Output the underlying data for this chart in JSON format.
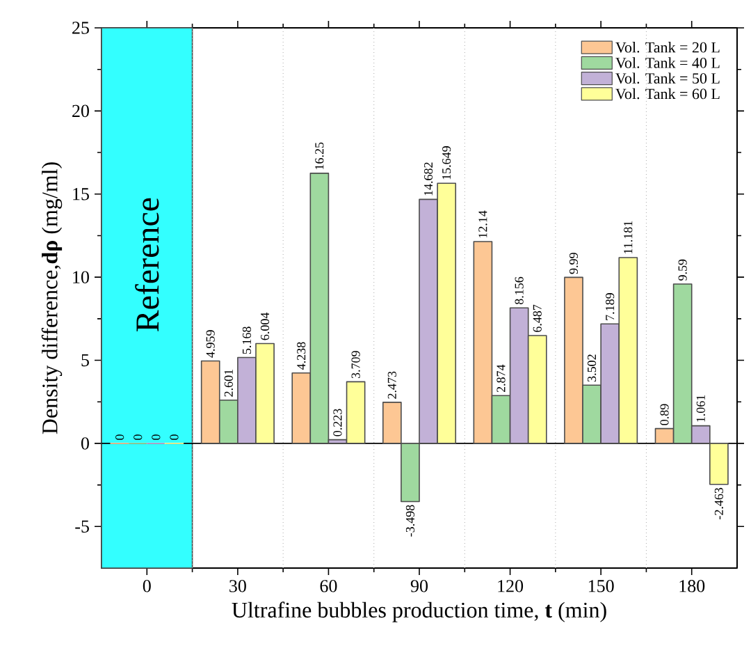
{
  "chart_data": {
    "type": "bar",
    "xlabel": "Ultrafine bubbles production time, **t** (min)",
    "ylabel": "Density difference,**dρ** (mg/ml)",
    "x": [
      0,
      30,
      60,
      90,
      120,
      150,
      180
    ],
    "series": [
      {
        "name": "Vol. Tank = 20 L",
        "color": "#fdc794",
        "values": [
          0,
          4.959,
          4.238,
          2.473,
          12.14,
          9.99,
          0.89
        ]
      },
      {
        "name": "Vol. Tank = 40 L",
        "color": "#9fd99f",
        "values": [
          0,
          2.601,
          16.25,
          -3.498,
          2.874,
          3.502,
          9.59
        ]
      },
      {
        "name": "Vol. Tank = 50 L",
        "color": "#c2b1d7",
        "values": [
          0,
          5.168,
          0.223,
          14.682,
          8.156,
          7.189,
          1.061
        ]
      },
      {
        "name": "Vol. Tank = 60 L",
        "color": "#ffff99",
        "values": [
          0,
          6.004,
          3.709,
          15.649,
          6.487,
          11.181,
          -2.463
        ]
      }
    ],
    "xlim": [
      -15,
      195
    ],
    "xticks": [
      0,
      30,
      60,
      90,
      120,
      150,
      180
    ],
    "ylim": [
      -7.5,
      25
    ],
    "yticks": [
      -5,
      0,
      5,
      10,
      15,
      20,
      25
    ],
    "bands": [
      {
        "axis": "x",
        "from": -15,
        "to": 15,
        "label": "Reference",
        "color": "#33ffff"
      }
    ],
    "ref_lines": [
      {
        "axis": "y",
        "value": 0,
        "color": "#000000",
        "line_style": "solid"
      },
      {
        "axis": "x",
        "value": 15,
        "color": "#aaaaaa",
        "line_style": "dotted"
      },
      {
        "axis": "x",
        "value": 45,
        "color": "#aaaaaa",
        "line_style": "dotted"
      },
      {
        "axis": "x",
        "value": 75,
        "color": "#aaaaaa",
        "line_style": "dotted"
      },
      {
        "axis": "x",
        "value": 105,
        "color": "#aaaaaa",
        "line_style": "dotted"
      },
      {
        "axis": "x",
        "value": 135,
        "color": "#aaaaaa",
        "line_style": "dotted"
      },
      {
        "axis": "x",
        "value": 165,
        "color": "#aaaaaa",
        "line_style": "dotted"
      }
    ],
    "data_labels": true,
    "legend": "top right",
    "grid": false
  }
}
